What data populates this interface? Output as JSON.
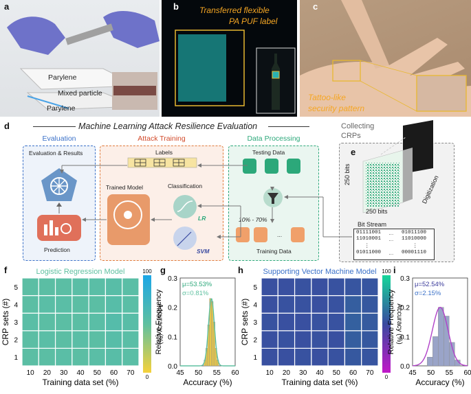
{
  "panels": {
    "a": "a",
    "b": "b",
    "c": "c",
    "d": "d",
    "e": "e",
    "f": "f",
    "g": "g",
    "h": "h",
    "i": "i"
  },
  "panel_a": {
    "layers": [
      "Parylene",
      "Mixed particle",
      "Parylene"
    ]
  },
  "panel_b": {
    "caption_line1": "Transferred flexible",
    "caption_line2": "PA PUF label"
  },
  "panel_c": {
    "caption_line1": "Tattoo-like",
    "caption_line2": "security pattern"
  },
  "panel_d": {
    "title": "Machine Learning Attack Resilience Evaluation",
    "evaluation": {
      "title": "Evaluation",
      "subtitle": "Evaluation & Results",
      "prediction": "Prediction"
    },
    "attack": {
      "title": "Attack Training",
      "labels": "Labels",
      "trained_model": "Trained Model",
      "classification": "Classification",
      "lr": "LR",
      "svm": "SVM"
    },
    "processing": {
      "title": "Data Processing",
      "testing": "Testing Data",
      "training": "Training Data",
      "range": "10% - 70%",
      "dots": "..."
    }
  },
  "panel_e": {
    "collecting": "Collecting",
    "crps": "CRPs",
    "bits_vertical": "250 bits",
    "bits_horizontal": "250 bits",
    "digitization": "Digitization",
    "bit_stream": "Bit Stream",
    "stream_left": [
      "01111001",
      "11010001",
      "⋮",
      "01011000"
    ],
    "stream_right": [
      "01011100",
      "11010000",
      "⋮",
      "00001110"
    ],
    "stream_mid": [
      "…",
      "…",
      "",
      "…"
    ]
  },
  "chart_data": [
    {
      "id": "f",
      "type": "heatmap",
      "title": "Logistic Regression Model",
      "xlabel": "Training data set (%)",
      "ylabel": "CRP sets (#)",
      "x": [
        10,
        20,
        30,
        40,
        50,
        60,
        70
      ],
      "y": [
        1,
        2,
        3,
        4,
        5
      ],
      "values": [
        [
          53,
          53,
          54,
          53,
          54,
          55,
          54
        ],
        [
          53,
          54,
          53,
          54,
          53,
          56,
          54
        ],
        [
          54,
          53,
          53,
          53,
          54,
          57,
          55
        ],
        [
          53,
          54,
          54,
          53,
          53,
          56,
          54
        ],
        [
          53,
          53,
          53,
          54,
          54,
          55,
          54
        ]
      ],
      "colorbar": {
        "label": "Accuracy (%)",
        "ticks": [
          0,
          100
        ]
      }
    },
    {
      "id": "g",
      "type": "bar",
      "xlabel": "Accuracy (%)",
      "ylabel": "Relative Frequency",
      "xlim": [
        45,
        60
      ],
      "ylim": [
        0,
        0.3
      ],
      "xticks": [
        45,
        50,
        55,
        60
      ],
      "yticks": [
        0.0,
        0.1,
        0.2,
        0.3
      ],
      "annotations": [
        "μ=53.53%",
        "σ=0.81%"
      ],
      "bins": [
        51.5,
        52.0,
        52.5,
        53.0,
        53.5,
        54.0,
        54.5,
        55.0
      ],
      "values": [
        0.02,
        0.06,
        0.14,
        0.23,
        0.22,
        0.15,
        0.06,
        0.02
      ],
      "fit": {
        "mu": 53.53,
        "sigma": 0.81
      }
    },
    {
      "id": "h",
      "type": "heatmap",
      "title": "Supporting Vector Machine Model",
      "xlabel": "Training data set (%)",
      "ylabel": "CRP sets (#)",
      "x": [
        10,
        20,
        30,
        40,
        50,
        60,
        70
      ],
      "y": [
        1,
        2,
        3,
        4,
        5
      ],
      "values": [
        [
          52,
          52,
          53,
          52,
          53,
          55,
          54
        ],
        [
          52,
          53,
          52,
          53,
          52,
          57,
          55
        ],
        [
          53,
          52,
          52,
          53,
          53,
          58,
          56
        ],
        [
          52,
          53,
          53,
          52,
          53,
          57,
          55
        ],
        [
          52,
          52,
          53,
          52,
          53,
          54,
          54
        ]
      ],
      "colorbar": {
        "label": "Accuracy (%)",
        "ticks": [
          0,
          100
        ]
      }
    },
    {
      "id": "i",
      "type": "bar",
      "xlabel": "Accuracy (%)",
      "ylabel": "Relative Frequency",
      "xlim": [
        45,
        60
      ],
      "ylim": [
        0,
        0.3
      ],
      "xticks": [
        45,
        50,
        55,
        60
      ],
      "yticks": [
        0.0,
        0.1,
        0.2,
        0.3
      ],
      "annotations": [
        "μ=52.54%",
        "σ=2.15%"
      ],
      "bins": [
        49,
        50.5,
        52,
        53.5,
        55,
        56.5
      ],
      "values": [
        0.03,
        0.1,
        0.2,
        0.17,
        0.08,
        0.02
      ],
      "fit": {
        "mu": 52.54,
        "sigma": 2.15
      }
    }
  ],
  "colors": {
    "lr_cmap": [
      "#f5d13b",
      "#5fc0a0",
      "#1ba6e6"
    ],
    "svm_cmap": [
      "#c018c8",
      "#3a4aa0",
      "#16d69a"
    ],
    "eval": "#3a70c8",
    "attack": "#e07a3a",
    "processing": "#2ca87a"
  }
}
